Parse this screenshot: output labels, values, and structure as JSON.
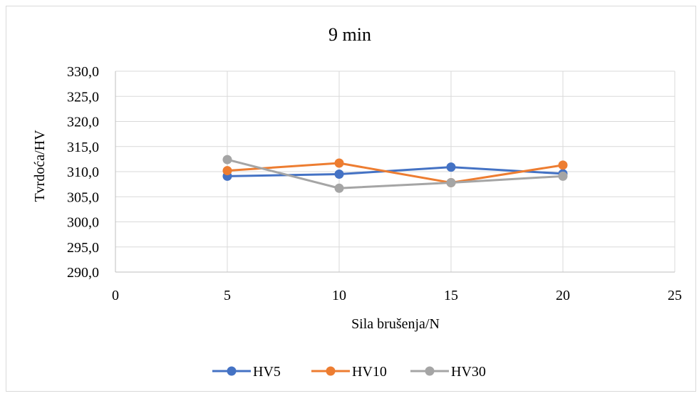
{
  "chart_data": {
    "type": "line",
    "title": "9 min",
    "xlabel": "Sila brušenja/N",
    "ylabel": "Tvrdoća/HV",
    "xlim": [
      0,
      25
    ],
    "ylim": [
      290,
      330
    ],
    "x_ticks": [
      0,
      5,
      10,
      15,
      20,
      25
    ],
    "y_ticks": [
      290,
      295,
      300,
      305,
      310,
      315,
      320,
      325,
      330
    ],
    "x_tick_labels": [
      "0",
      "5",
      "10",
      "15",
      "20",
      "25"
    ],
    "y_tick_labels": [
      "290,0",
      "295,0",
      "300,0",
      "305,0",
      "310,0",
      "315,0",
      "320,0",
      "325,0",
      "330,0"
    ],
    "grid": true,
    "legend_position": "bottom",
    "x": [
      5,
      10,
      15,
      20
    ],
    "series": [
      {
        "name": "HV5",
        "color": "#4472c4",
        "values": [
          309.1,
          309.5,
          310.9,
          309.6
        ]
      },
      {
        "name": "HV10",
        "color": "#ed7d31",
        "values": [
          310.2,
          311.7,
          307.8,
          311.3
        ]
      },
      {
        "name": "HV30",
        "color": "#a5a5a5",
        "values": [
          312.4,
          306.7,
          307.8,
          309.1
        ]
      }
    ]
  }
}
